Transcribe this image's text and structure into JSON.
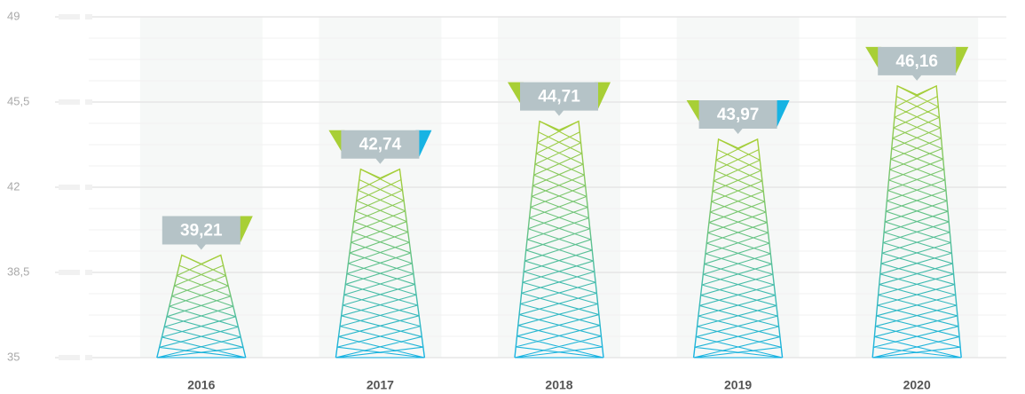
{
  "chart_data": {
    "type": "bar",
    "categories": [
      "2016",
      "2017",
      "2018",
      "2019",
      "2020"
    ],
    "values": [
      39.21,
      42.74,
      44.71,
      43.97,
      46.16
    ],
    "value_labels": [
      "39,21",
      "42,74",
      "44,71",
      "43,97",
      "46,16"
    ],
    "colors": [
      "#17b3e3",
      "#a8cf36"
    ],
    "ylim": [
      35,
      49
    ],
    "yticks": [
      35,
      {
        "value": 38.5,
        "label": "38,5"
      },
      42,
      {
        "value": 45.5,
        "label": "45,5"
      },
      49
    ],
    "grid": true
  }
}
